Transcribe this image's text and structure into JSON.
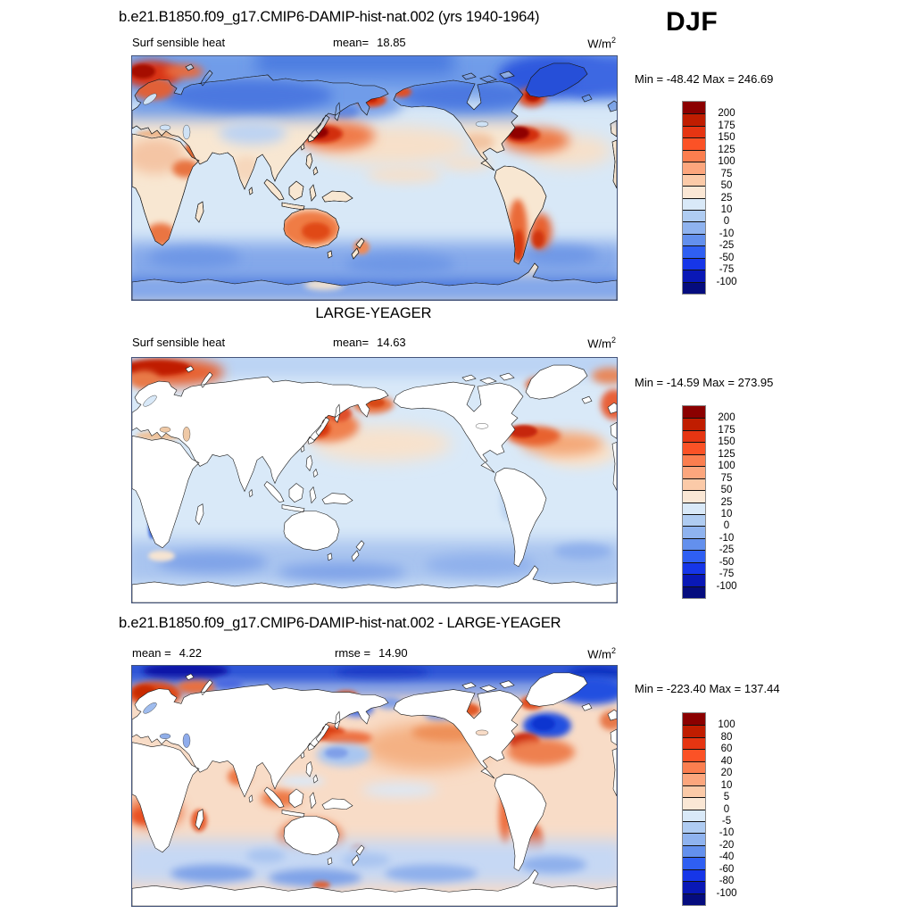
{
  "header": {
    "run_title": "b.e21.B1850.f09_g17.CMIP6-DAMIP-hist-nat.002 (yrs 1940-1964)",
    "season": "DJF"
  },
  "panels": [
    {
      "variable": "Surf sensible heat",
      "mean_label": "mean=",
      "mean_value": "18.85",
      "units_base": "W/m",
      "units_exp": "2",
      "minmax": "Min = -48.42 Max = 246.69",
      "colorbar": {
        "labels": [
          "200",
          "175",
          "150",
          "125",
          "100",
          "75",
          "50",
          "25",
          "10",
          "0",
          "-10",
          "-25",
          "-50",
          "-75",
          "-100"
        ],
        "colors": [
          "#8B0000",
          "#C01D00",
          "#E63512",
          "#FB5226",
          "#FB7E4F",
          "#FCA67D",
          "#FBCAA8",
          "#FAE7D5",
          "#D9E9F8",
          "#AFCCF2",
          "#8FB3EF",
          "#6390ED",
          "#2F5FF2",
          "#1636E8",
          "#0918B6",
          "#050C7E"
        ]
      }
    },
    {
      "title": "LARGE-YEAGER",
      "variable": "Surf sensible heat",
      "mean_label": "mean=",
      "mean_value": "14.63",
      "units_base": "W/m",
      "units_exp": "2",
      "minmax": "Min = -14.59 Max = 273.95",
      "colorbar": {
        "labels": [
          "200",
          "175",
          "150",
          "125",
          "100",
          "75",
          "50",
          "25",
          "10",
          "0",
          "-10",
          "-25",
          "-50",
          "-75",
          "-100"
        ],
        "colors": [
          "#8B0000",
          "#C01D00",
          "#E63512",
          "#FB5226",
          "#FB7E4F",
          "#FCA67D",
          "#FBCAA8",
          "#FAE7D5",
          "#D9E9F8",
          "#AFCCF2",
          "#8FB3EF",
          "#6390ED",
          "#2F5FF2",
          "#1636E8",
          "#0918B6",
          "#050C7E"
        ]
      }
    },
    {
      "title": "b.e21.B1850.f09_g17.CMIP6-DAMIP-hist-nat.002 - LARGE-YEAGER",
      "mean_label": "mean =",
      "mean_value": "4.22",
      "rmse_label": "rmse =",
      "rmse_value": "14.90",
      "units_base": "W/m",
      "units_exp": "2",
      "minmax": "Min = -223.40 Max = 137.44",
      "colorbar": {
        "labels": [
          "100",
          "80",
          "60",
          "40",
          "20",
          "10",
          "5",
          "0",
          "-5",
          "-10",
          "-20",
          "-40",
          "-60",
          "-80",
          "-100"
        ],
        "colors": [
          "#8B0000",
          "#C01D00",
          "#E63512",
          "#FB5226",
          "#FB7E4F",
          "#FCA67D",
          "#FBCAA8",
          "#FAE7D5",
          "#D9E9F8",
          "#AFCCF2",
          "#8FB3EF",
          "#6390ED",
          "#2F5FF2",
          "#1636E8",
          "#0918B6",
          "#050C7E"
        ]
      }
    }
  ],
  "chart_data": {
    "type": "heatmap",
    "subtype": "global lat-lon filled contour maps (Pacific-centered), diverging blue-red palette",
    "season": "DJF",
    "variable": "Surf sensible heat",
    "units": "W/m2",
    "panels": [
      {
        "name": "b.e21.B1850.f09_g17.CMIP6-DAMIP-hist-nat.002 (yrs 1940-1964)",
        "mean": 18.85,
        "min": -48.42,
        "max": 246.69,
        "contour_levels": [
          -100,
          -75,
          -50,
          -25,
          -10,
          0,
          10,
          25,
          50,
          75,
          100,
          125,
          150,
          175,
          200
        ],
        "notable_features": "warm maxima over Kuroshio/Japan, Gulf Stream, Labrador Sea, Norwegian Sea, Australia, Argentina; cold (negative) over Arctic, Greenland, Siberia, Southern Ocean"
      },
      {
        "name": "LARGE-YEAGER",
        "mean": 14.63,
        "min": -14.59,
        "max": 273.95,
        "contour_levels": [
          -100,
          -75,
          -50,
          -25,
          -10,
          0,
          10,
          25,
          50,
          75,
          100,
          125,
          150,
          175,
          200
        ],
        "notable_features": "ocean-only data (land masked white); maxima over Barents/Norwegian Sea, Sea of Okhotsk/Kuroshio, Bering Sea, Gulf Stream; weak negatives over Southern Ocean"
      },
      {
        "name": "b.e21.B1850.f09_g17.CMIP6-DAMIP-hist-nat.002 - LARGE-YEAGER",
        "mean": 4.22,
        "rmse": 14.9,
        "min": -223.4,
        "max": 137.44,
        "contour_levels": [
          -100,
          -80,
          -60,
          -40,
          -20,
          -10,
          -5,
          0,
          5,
          10,
          20,
          40,
          60,
          80,
          100
        ],
        "notable_features": "strong negative band across Arctic, Labrador Sea and East Greenland; positive over Norwegian Sea, Kuroshio, subtropical oceans and coastal rims; weak negatives over Southern Ocean"
      }
    ],
    "palette_hex": [
      "#8B0000",
      "#C01D00",
      "#E63512",
      "#FB5226",
      "#FB7E4F",
      "#FCA67D",
      "#FBCAA8",
      "#FAE7D5",
      "#D9E9F8",
      "#AFCCF2",
      "#8FB3EF",
      "#6390ED",
      "#2F5FF2",
      "#1636E8",
      "#0918B6",
      "#050C7E"
    ],
    "legend_position": "right of each map",
    "grid": false
  }
}
